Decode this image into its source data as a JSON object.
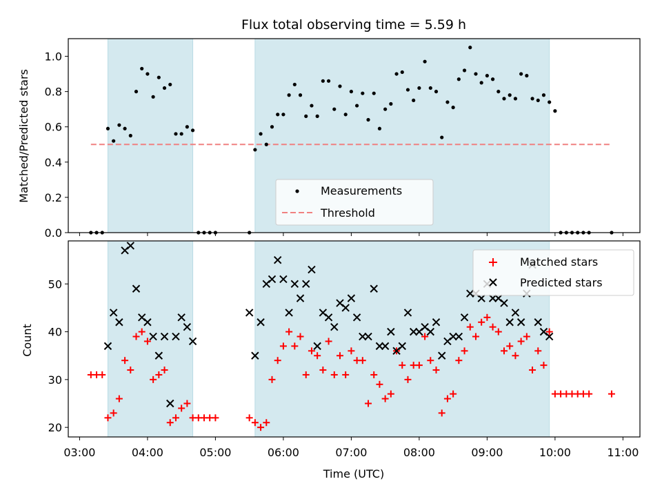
{
  "chart_data": [
    {
      "type": "scatter",
      "title": "Flux total observing time = 5.59 h",
      "xlabel": "",
      "ylabel": "Matched/Predicted stars",
      "xlim": [
        "03:00",
        "11:00"
      ],
      "ylim": [
        0,
        1.1
      ],
      "yticks": [
        "0.0",
        "0.2",
        "0.4",
        "0.6",
        "0.8",
        "1.0"
      ],
      "xticks": [
        "03:00",
        "04:00",
        "05:00",
        "06:00",
        "07:00",
        "08:00",
        "09:00",
        "10:00",
        "11:00"
      ],
      "shaded_intervals": [
        [
          "03:25",
          "04:40"
        ],
        [
          "05:35",
          "09:55"
        ]
      ],
      "legend_position": "lower center",
      "series": [
        {
          "name": "Measurements",
          "kind": "scatter",
          "color": "#000000",
          "x": [
            "03:10",
            "03:15",
            "03:20",
            "03:25",
            "03:30",
            "03:35",
            "03:40",
            "03:45",
            "03:50",
            "03:55",
            "04:00",
            "04:05",
            "04:10",
            "04:15",
            "04:20",
            "04:25",
            "04:30",
            "04:35",
            "04:40",
            "04:45",
            "04:50",
            "04:55",
            "05:00",
            "05:30",
            "05:35",
            "05:40",
            "05:45",
            "05:50",
            "05:55",
            "06:00",
            "06:05",
            "06:10",
            "06:15",
            "06:20",
            "06:25",
            "06:30",
            "06:35",
            "06:40",
            "06:45",
            "06:50",
            "06:55",
            "07:00",
            "07:05",
            "07:10",
            "07:15",
            "07:20",
            "07:25",
            "07:30",
            "07:35",
            "07:40",
            "07:45",
            "07:50",
            "07:55",
            "08:00",
            "08:05",
            "08:10",
            "08:15",
            "08:20",
            "08:25",
            "08:30",
            "08:35",
            "08:40",
            "08:45",
            "08:50",
            "08:55",
            "09:00",
            "09:05",
            "09:10",
            "09:15",
            "09:20",
            "09:25",
            "09:30",
            "09:35",
            "09:40",
            "09:45",
            "09:50",
            "09:55",
            "10:00",
            "10:05",
            "10:10",
            "10:15",
            "10:20",
            "10:25",
            "10:30",
            "10:50"
          ],
          "y": [
            0,
            0,
            0,
            0.59,
            0.52,
            0.61,
            0.59,
            0.55,
            0.8,
            0.93,
            0.9,
            0.77,
            0.88,
            0.82,
            0.84,
            0.56,
            0.56,
            0.6,
            0.58,
            0,
            0,
            0,
            0,
            0,
            0.47,
            0.56,
            0.5,
            0.6,
            0.67,
            0.67,
            0.78,
            0.84,
            0.78,
            0.66,
            0.72,
            0.66,
            0.86,
            0.86,
            0.7,
            0.83,
            0.67,
            0.8,
            0.72,
            0.79,
            0.64,
            0.79,
            0.59,
            0.7,
            0.73,
            0.9,
            0.91,
            0.81,
            0.75,
            0.82,
            0.97,
            0.82,
            0.8,
            0.54,
            0.74,
            0.71,
            0.87,
            0.92,
            1.05,
            0.9,
            0.85,
            0.89,
            0.87,
            0.8,
            0.76,
            0.78,
            0.76,
            0.9,
            0.89,
            0.76,
            0.75,
            0.78,
            0.74,
            0.69,
            0,
            0,
            0,
            0,
            0,
            0,
            0
          ]
        },
        {
          "name": "Threshold",
          "kind": "line",
          "color": "#f08080",
          "dash": "dashed",
          "x": [
            "03:10",
            "10:50"
          ],
          "y": [
            0.5,
            0.5
          ]
        }
      ]
    },
    {
      "type": "scatter",
      "title": "",
      "xlabel": "Time (UTC)",
      "ylabel": "Count",
      "xlim": [
        "03:00",
        "11:00"
      ],
      "ylim": [
        18,
        59
      ],
      "yticks": [
        "20",
        "30",
        "40",
        "50"
      ],
      "xticks": [
        "03:00",
        "04:00",
        "05:00",
        "06:00",
        "07:00",
        "08:00",
        "09:00",
        "10:00",
        "11:00"
      ],
      "shaded_intervals": [
        [
          "03:25",
          "04:40"
        ],
        [
          "05:35",
          "09:55"
        ]
      ],
      "legend_position": "upper right",
      "series": [
        {
          "name": "Matched stars",
          "kind": "plus",
          "color": "#ff0000",
          "x": [
            "03:10",
            "03:15",
            "03:20",
            "03:25",
            "03:30",
            "03:35",
            "03:40",
            "03:45",
            "03:50",
            "03:55",
            "04:00",
            "04:05",
            "04:10",
            "04:15",
            "04:20",
            "04:25",
            "04:30",
            "04:35",
            "04:40",
            "04:45",
            "04:50",
            "04:55",
            "05:00",
            "05:30",
            "05:35",
            "05:40",
            "05:45",
            "05:50",
            "05:55",
            "06:00",
            "06:05",
            "06:10",
            "06:15",
            "06:20",
            "06:25",
            "06:30",
            "06:35",
            "06:40",
            "06:45",
            "06:50",
            "06:55",
            "07:00",
            "07:05",
            "07:10",
            "07:15",
            "07:20",
            "07:25",
            "07:30",
            "07:35",
            "07:40",
            "07:45",
            "07:50",
            "07:55",
            "08:00",
            "08:05",
            "08:10",
            "08:15",
            "08:20",
            "08:25",
            "08:30",
            "08:35",
            "08:40",
            "08:45",
            "08:50",
            "08:55",
            "09:00",
            "09:05",
            "09:10",
            "09:15",
            "09:20",
            "09:25",
            "09:30",
            "09:35",
            "09:40",
            "09:45",
            "09:50",
            "09:55",
            "10:00",
            "10:05",
            "10:10",
            "10:15",
            "10:20",
            "10:25",
            "10:30",
            "10:50"
          ],
          "y": [
            31,
            31,
            31,
            22,
            23,
            26,
            34,
            32,
            39,
            40,
            38,
            30,
            31,
            32,
            21,
            22,
            24,
            25,
            22,
            22,
            22,
            22,
            22,
            22,
            21,
            20,
            21,
            30,
            34,
            37,
            40,
            37,
            39,
            31,
            36,
            35,
            32,
            38,
            31,
            35,
            31,
            36,
            34,
            34,
            25,
            31,
            29,
            26,
            27,
            36,
            33,
            30,
            33,
            33,
            39,
            34,
            32,
            23,
            26,
            27,
            34,
            36,
            41,
            39,
            42,
            43,
            41,
            40,
            36,
            37,
            35,
            38,
            39,
            32,
            36,
            33,
            40,
            27,
            27,
            27,
            27,
            27,
            27,
            27,
            27
          ]
        },
        {
          "name": "Predicted stars",
          "kind": "cross",
          "color": "#000000",
          "x": [
            "03:25",
            "03:30",
            "03:35",
            "03:40",
            "03:45",
            "03:50",
            "03:55",
            "04:00",
            "04:05",
            "04:10",
            "04:15",
            "04:20",
            "04:25",
            "04:30",
            "04:35",
            "04:40",
            "05:30",
            "05:35",
            "05:40",
            "05:45",
            "05:50",
            "05:55",
            "06:00",
            "06:05",
            "06:10",
            "06:15",
            "06:20",
            "06:25",
            "06:30",
            "06:35",
            "06:40",
            "06:45",
            "06:50",
            "06:55",
            "07:00",
            "07:05",
            "07:10",
            "07:15",
            "07:20",
            "07:25",
            "07:30",
            "07:35",
            "07:40",
            "07:45",
            "07:50",
            "07:55",
            "08:00",
            "08:05",
            "08:10",
            "08:15",
            "08:20",
            "08:25",
            "08:30",
            "08:35",
            "08:40",
            "08:45",
            "08:50",
            "08:55",
            "09:00",
            "09:05",
            "09:10",
            "09:15",
            "09:20",
            "09:25",
            "09:30",
            "09:35",
            "09:40",
            "09:45",
            "09:50",
            "09:55"
          ],
          "y": [
            37,
            44,
            42,
            57,
            58,
            49,
            43,
            42,
            39,
            35,
            39,
            25,
            39,
            43,
            41,
            38,
            44,
            35,
            42,
            50,
            51,
            55,
            51,
            44,
            50,
            47,
            50,
            53,
            37,
            44,
            43,
            41,
            46,
            45,
            47,
            43,
            39,
            39,
            49,
            37,
            37,
            40,
            36,
            37,
            44,
            40,
            40,
            41,
            40,
            42,
            35,
            38,
            39,
            39,
            43,
            48,
            48,
            47,
            50,
            47,
            47,
            46,
            42,
            44,
            42,
            48,
            54,
            42,
            40,
            39
          ]
        }
      ]
    }
  ],
  "top_panel": {
    "title": "Flux total observing time = 5.59 h",
    "ylabel": "Matched/Predicted stars",
    "legend": [
      "Measurements",
      "Threshold"
    ]
  },
  "bottom_panel": {
    "xlabel": "Time (UTC)",
    "ylabel": "Count",
    "legend": [
      "Matched stars",
      "Predicted stars"
    ]
  },
  "colors": {
    "shade": "#d4e9ef",
    "threshold": "#f08080",
    "matched": "#ff0000",
    "predicted": "#000000"
  }
}
